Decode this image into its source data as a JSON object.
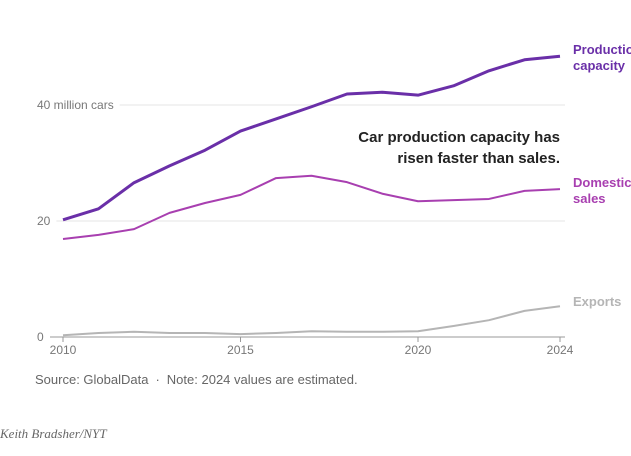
{
  "chart_data": {
    "type": "line",
    "annotation": "Car production capacity has risen faster than sales.",
    "source": "Source: GlobalData",
    "note": "Note: 2024 values are estimated.",
    "credit": "Keith Bradsher/NYT",
    "x": [
      2010,
      2011,
      2012,
      2013,
      2014,
      2015,
      2016,
      2017,
      2018,
      2019,
      2020,
      2021,
      2022,
      2023,
      2024
    ],
    "xlim": [
      2010,
      2024
    ],
    "xticks": [
      2010,
      2015,
      2020,
      2024
    ],
    "ylim": [
      0,
      50
    ],
    "yticks": [
      0,
      20,
      {
        "value": 40,
        "label": "40 million cars"
      }
    ],
    "grid": true,
    "series": [
      {
        "name": "Production capacity",
        "color": "#6a2fa8",
        "values": [
          20.2,
          22.1,
          26.6,
          29.5,
          32.2,
          35.5,
          37.6,
          39.7,
          41.9,
          42.2,
          41.7,
          43.3,
          45.9,
          47.8,
          48.4
        ]
      },
      {
        "name": "Domestic sales",
        "color": "#a83fb0",
        "values": [
          16.9,
          17.6,
          18.6,
          21.4,
          23.1,
          24.5,
          27.4,
          27.8,
          26.7,
          24.7,
          23.4,
          23.6,
          23.8,
          25.2,
          25.5
        ]
      },
      {
        "name": "Exports",
        "color": "#b5b5b5",
        "values": [
          0.3,
          0.7,
          0.9,
          0.7,
          0.7,
          0.5,
          0.7,
          1.0,
          0.9,
          0.9,
          1.0,
          1.9,
          2.9,
          4.5,
          5.3
        ]
      }
    ]
  }
}
